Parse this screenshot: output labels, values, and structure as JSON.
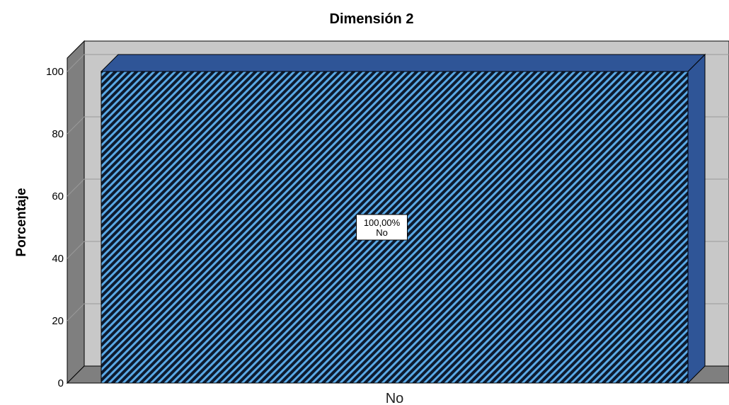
{
  "chart_data": {
    "type": "bar",
    "title": "Dimensión 2",
    "xlabel": "",
    "ylabel": "Porcentaje",
    "categories": [
      "No"
    ],
    "values": [
      100
    ],
    "ylim": [
      0,
      100
    ],
    "yticks": [
      "0",
      "20",
      "40",
      "60",
      "80",
      "100"
    ],
    "data_labels": [
      {
        "value": "100,00%",
        "category": "No"
      }
    ],
    "grid": true,
    "style_3d": true,
    "bar_color": "#2f5597",
    "hatch_color": "#5aa9e6",
    "wall_color": "#c8c8c8",
    "floor_color": "#7f7f7f"
  }
}
